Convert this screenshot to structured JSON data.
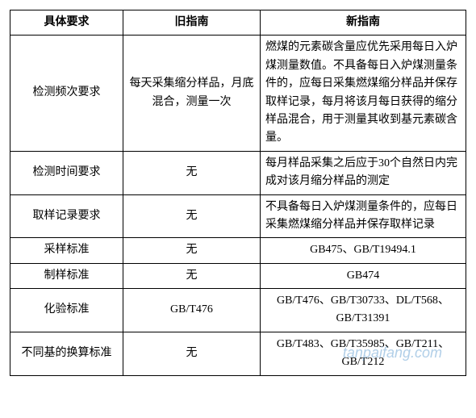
{
  "table": {
    "headers": [
      "具体要求",
      "旧指南",
      "新指南"
    ],
    "rows": [
      {
        "req": "检测频次要求",
        "old": "每天采集缩分样品，月底混合，测量一次",
        "new": "燃煤的元素碳含量应优先采用每日入炉煤测量数值。不具备每日入炉煤测量条件的，应每日采集燃煤缩分样品并保存取样记录，每月将该月每日获得的缩分样品混合，用于测量其收到基元素碳含量。",
        "new_align": "left"
      },
      {
        "req": "检测时间要求",
        "old": "无",
        "new": "每月样品采集之后应于30个自然日内完成对该月缩分样品的测定",
        "new_align": "left"
      },
      {
        "req": "取样记录要求",
        "old": "无",
        "new": "不具备每日入炉煤测量条件的，应每日采集燃煤缩分样品并保存取样记录",
        "new_align": "left"
      },
      {
        "req": "采样标准",
        "old": "无",
        "new": "GB475、GB/T19494.1",
        "new_align": "center"
      },
      {
        "req": "制样标准",
        "old": "无",
        "new": "GB474",
        "new_align": "center"
      },
      {
        "req": "化验标准",
        "old": "GB/T476",
        "new": "GB/T476、GB/T30733、DL/T568、GB/T31391",
        "new_align": "center"
      },
      {
        "req": "不同基的换算标准",
        "old": "无",
        "new": "GB/T483、GB/T35985、GB/T211、GB/T212",
        "new_align": "center"
      }
    ]
  },
  "watermark": "tanpaifang.com"
}
